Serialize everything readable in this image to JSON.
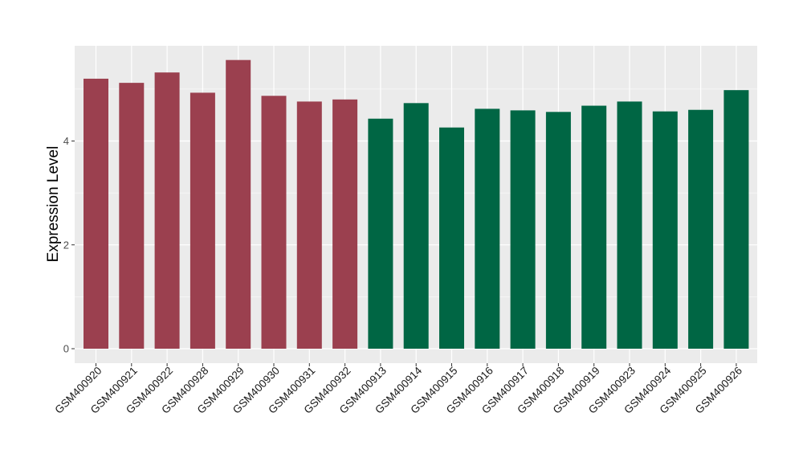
{
  "chart_data": {
    "type": "bar",
    "title": "",
    "xlabel": "",
    "ylabel": "Expression Level",
    "ylim": [
      -0.25,
      5.8
    ],
    "yticks": [
      0,
      2,
      4
    ],
    "grid": true,
    "legend": "none",
    "colors": {
      "group1": "#9b404f",
      "group2": "#006644",
      "panel": "#ebebeb",
      "grid": "#ffffff"
    },
    "categories": [
      "GSM400920",
      "GSM400921",
      "GSM400922",
      "GSM400928",
      "GSM400929",
      "GSM400930",
      "GSM400931",
      "GSM400932",
      "GSM400913",
      "GSM400914",
      "GSM400915",
      "GSM400916",
      "GSM400917",
      "GSM400918",
      "GSM400919",
      "GSM400923",
      "GSM400924",
      "GSM400925",
      "GSM400926"
    ],
    "values": [
      5.2,
      5.12,
      5.32,
      4.93,
      5.56,
      4.87,
      4.76,
      4.8,
      4.43,
      4.73,
      4.26,
      4.62,
      4.59,
      4.56,
      4.68,
      4.76,
      4.57,
      4.6,
      4.98
    ],
    "groups": [
      1,
      1,
      1,
      1,
      1,
      1,
      1,
      1,
      2,
      2,
      2,
      2,
      2,
      2,
      2,
      2,
      2,
      2,
      2
    ]
  }
}
